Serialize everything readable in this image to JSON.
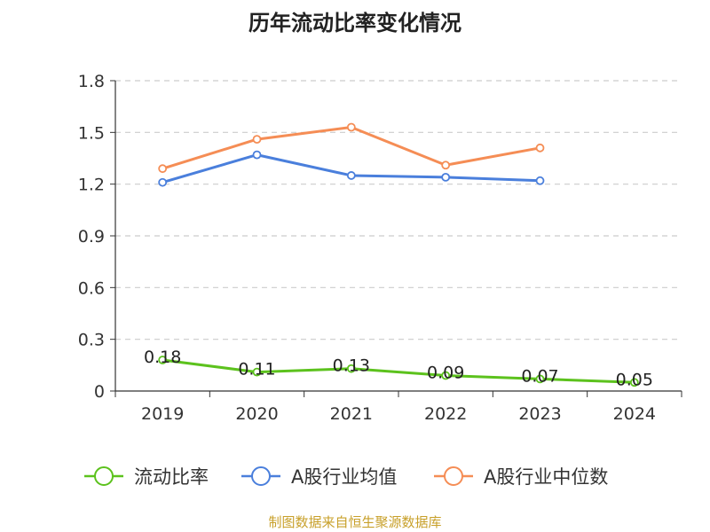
{
  "chart_data": {
    "type": "line",
    "title": "历年流动比率变化情况",
    "categories": [
      "2019",
      "2020",
      "2021",
      "2022",
      "2023",
      "2024"
    ],
    "ylim": [
      0,
      1.8
    ],
    "yticks": [
      "0",
      "0.3",
      "0.6",
      "0.9",
      "1.2",
      "1.5",
      "1.8"
    ],
    "grid": true,
    "legend_position": "bottom",
    "series": [
      {
        "name": "流动比率",
        "color": "#5cc21d",
        "values": [
          0.18,
          0.11,
          0.13,
          0.09,
          0.07,
          0.05
        ],
        "labels": [
          "0.18",
          "0.11",
          "0.13",
          "0.09",
          "0.07",
          "0.05"
        ],
        "show_labels": true
      },
      {
        "name": "A股行业均值",
        "color": "#4a7fdc",
        "values": [
          1.21,
          1.37,
          1.25,
          1.24,
          1.22,
          null
        ],
        "show_labels": false
      },
      {
        "name": "A股行业中位数",
        "color": "#f58d55",
        "values": [
          1.29,
          1.46,
          1.53,
          1.31,
          1.41,
          null
        ],
        "show_labels": false
      }
    ]
  },
  "footer": {
    "source": "制图数据来自恒生聚源数据库"
  }
}
